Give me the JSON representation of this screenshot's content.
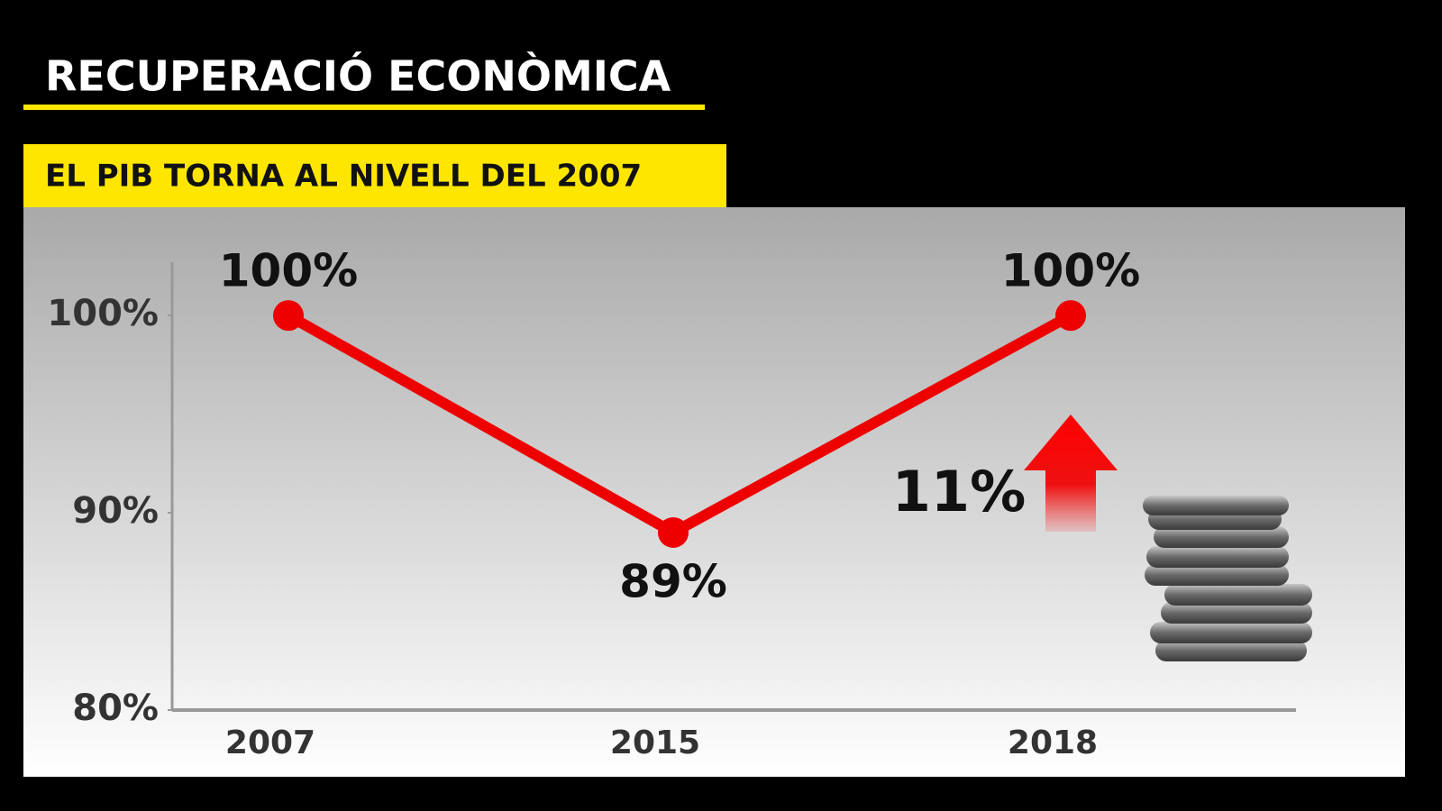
{
  "chart_data": {
    "type": "line",
    "title": "RECUPERACIÓ ECONÒMICA",
    "subtitle": "EL PIB TORNA AL NIVELL DEL 2007",
    "categories": [
      "2007",
      "2015",
      "2018"
    ],
    "values": [
      100,
      89,
      100
    ],
    "value_labels": [
      "100%",
      "89%",
      "100%"
    ],
    "color": "#ee0000",
    "ylim": [
      80,
      102.7
    ],
    "yticks": [
      {
        "value": 80,
        "label": "80%"
      },
      {
        "value": 90,
        "label": "90%"
      },
      {
        "value": 100,
        "label": "100%"
      }
    ],
    "annotation": "11%"
  }
}
